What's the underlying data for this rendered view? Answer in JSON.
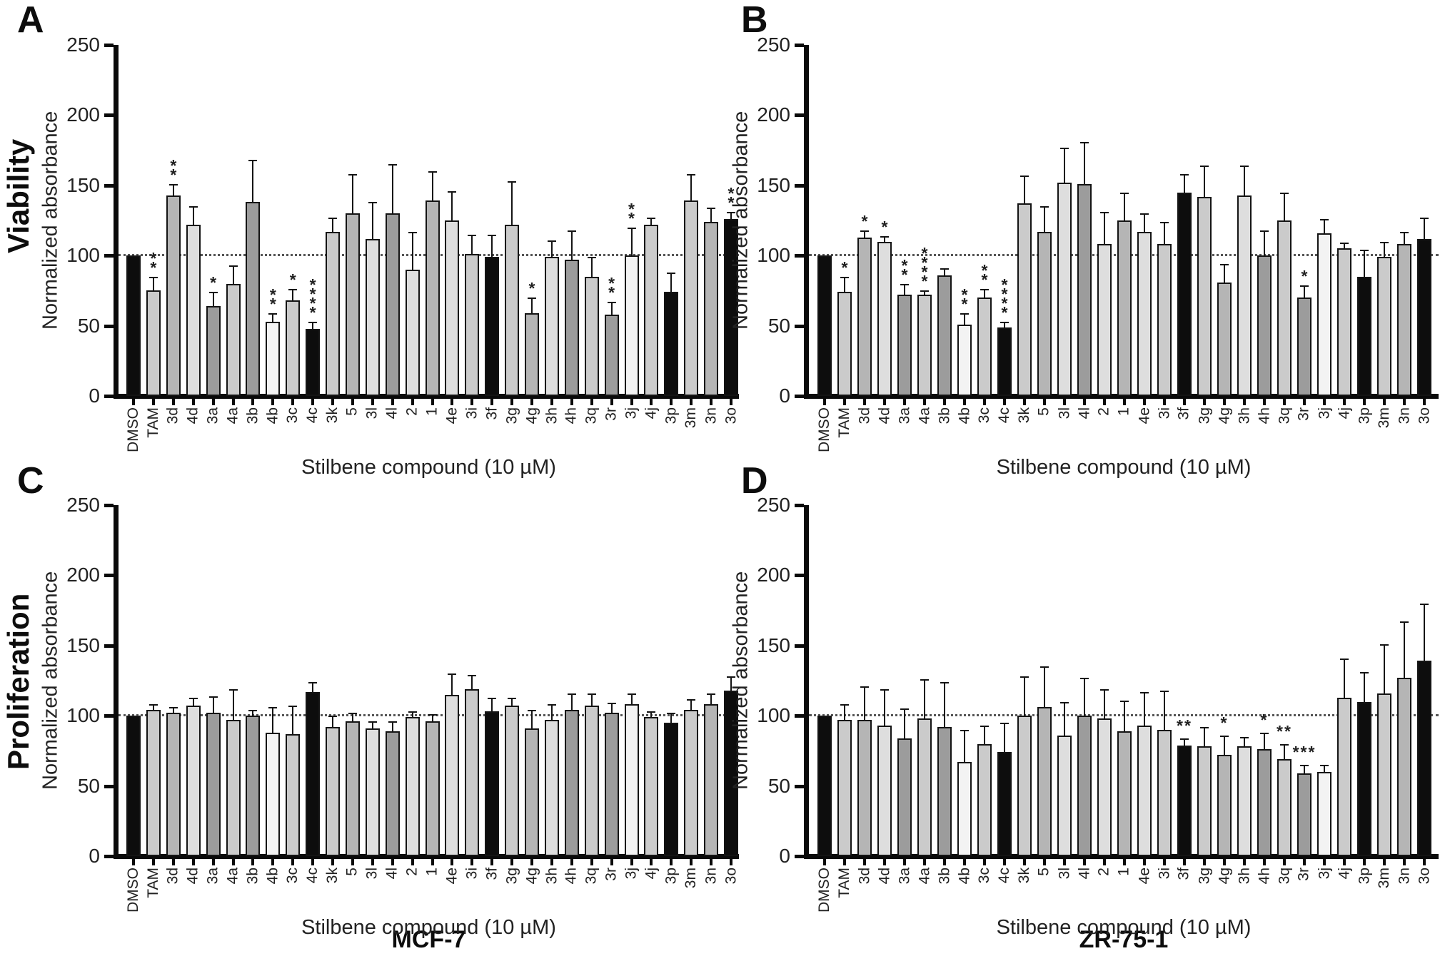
{
  "figure": {
    "panel_letters": {
      "A": "A",
      "B": "B",
      "C": "C",
      "D": "D"
    },
    "row_labels": [
      "Viability",
      "Proliferation"
    ],
    "column_footers": [
      "MCF-7",
      "ZR-75-1"
    ],
    "y_axis_label": "Normalized absorbance",
    "x_axis_label": "Stilbene compound (10 µM)",
    "y_ticks": [
      0,
      50,
      100,
      150,
      200,
      250
    ],
    "reference_line": 100,
    "bar_outline_color": "#141414",
    "shade_colors": {
      "black": "#0d0d0d",
      "dark": "#9c9c9c",
      "medium": "#b5b5b5",
      "light": "#cbcbcb",
      "lighter": "#dedede",
      "white": "#f3f3f3"
    },
    "shades": {
      "DMSO": "black",
      "TAM": "light",
      "3d": "medium",
      "4d": "lighter",
      "3a": "dark",
      "4a": "light",
      "3b": "dark",
      "4b": "white",
      "3c": "light",
      "4c": "black",
      "3k": "light",
      "5": "medium",
      "3l": "lighter",
      "4l": "dark",
      "2": "lighter",
      "1": "medium",
      "4e": "lighter",
      "3i": "light",
      "3f": "black",
      "3g": "light",
      "4g": "medium",
      "3h": "lighter",
      "4h": "dark",
      "3q": "light",
      "3r": "dark",
      "3j": "white",
      "4j": "light",
      "3p": "black",
      "3m": "light",
      "3n": "medium",
      "3o": "black"
    }
  },
  "chart_data": [
    {
      "type": "bar",
      "panel": "A",
      "row": "Viability",
      "cell_line": "MCF-7",
      "title": "",
      "ylabel": "Normalized absorbance",
      "xlabel": "Stilbene compound (10 µM)",
      "ylim": [
        0,
        250
      ],
      "reference_line": 100,
      "sig_orientation": "vertical",
      "categories": [
        "DMSO",
        "TAM",
        "3d",
        "4d",
        "3a",
        "4a",
        "3b",
        "4b",
        "3c",
        "4c",
        "3k",
        "5",
        "3l",
        "4l",
        "2",
        "1",
        "4e",
        "3i",
        "3f",
        "3g",
        "4g",
        "3h",
        "4h",
        "3q",
        "3r",
        "3j",
        "4j",
        "3p",
        "3m",
        "3n",
        "3o"
      ],
      "values": [
        100,
        75,
        143,
        122,
        64,
        80,
        138,
        53,
        68,
        48,
        117,
        130,
        112,
        130,
        90,
        139,
        125,
        101,
        99,
        122,
        59,
        99,
        97,
        85,
        58,
        100,
        122,
        74,
        139,
        124,
        126
      ],
      "errors": [
        0,
        10,
        8,
        13,
        10,
        13,
        30,
        6,
        8,
        5,
        10,
        28,
        26,
        35,
        27,
        21,
        21,
        14,
        16,
        31,
        11,
        12,
        21,
        14,
        9,
        20,
        5,
        14,
        19,
        10,
        5
      ],
      "sig": [
        "",
        "**",
        "**",
        "",
        "*",
        "",
        "",
        "**",
        "*",
        "****",
        "",
        "",
        "",
        "",
        "",
        "",
        "",
        "",
        "",
        "",
        "*",
        "",
        "",
        "",
        "**",
        "**",
        "",
        "",
        "",
        "",
        "**"
      ]
    },
    {
      "type": "bar",
      "panel": "B",
      "row": "Viability",
      "cell_line": "ZR-75-1",
      "title": "",
      "ylabel": "Normalized absorbance",
      "xlabel": "Stilbene compound (10 µM)",
      "ylim": [
        0,
        250
      ],
      "reference_line": 100,
      "sig_orientation": "vertical",
      "categories": [
        "DMSO",
        "TAM",
        "3d",
        "4d",
        "3a",
        "4a",
        "3b",
        "4b",
        "3c",
        "4c",
        "3k",
        "5",
        "3l",
        "4l",
        "2",
        "1",
        "4e",
        "3i",
        "3f",
        "3g",
        "4g",
        "3h",
        "4h",
        "3q",
        "3r",
        "3j",
        "4j",
        "3p",
        "3m",
        "3n",
        "3o"
      ],
      "values": [
        100,
        74,
        113,
        110,
        72,
        72,
        86,
        51,
        70,
        49,
        137,
        117,
        152,
        151,
        108,
        125,
        117,
        108,
        145,
        142,
        81,
        143,
        100,
        125,
        70,
        116,
        105,
        85,
        99,
        108,
        112
      ],
      "errors": [
        0,
        11,
        5,
        4,
        8,
        3,
        5,
        8,
        6,
        4,
        20,
        18,
        25,
        30,
        23,
        20,
        13,
        16,
        13,
        22,
        13,
        21,
        18,
        20,
        9,
        10,
        4,
        19,
        11,
        9,
        15
      ],
      "sig": [
        "",
        "*",
        "*",
        "*",
        "**",
        "****",
        "",
        "**",
        "**",
        "****",
        "",
        "",
        "",
        "",
        "",
        "",
        "",
        "",
        "",
        "",
        "",
        "",
        "",
        "",
        "*",
        "",
        "",
        "",
        "",
        "",
        ""
      ]
    },
    {
      "type": "bar",
      "panel": "C",
      "row": "Proliferation",
      "cell_line": "MCF-7",
      "title": "",
      "ylabel": "Normalized absorbance",
      "xlabel": "Stilbene compound (10 µM)",
      "ylim": [
        0,
        250
      ],
      "reference_line": 100,
      "sig_orientation": "horizontal",
      "categories": [
        "DMSO",
        "TAM",
        "3d",
        "4d",
        "3a",
        "4a",
        "3b",
        "4b",
        "3c",
        "4c",
        "3k",
        "5",
        "3l",
        "4l",
        "2",
        "1",
        "4e",
        "3i",
        "3f",
        "3g",
        "4g",
        "3h",
        "4h",
        "3q",
        "3r",
        "3j",
        "4j",
        "3p",
        "3m",
        "3n",
        "3o"
      ],
      "values": [
        100,
        104,
        102,
        107,
        102,
        97,
        100,
        88,
        87,
        117,
        92,
        96,
        91,
        89,
        99,
        96,
        115,
        119,
        103,
        107,
        91,
        97,
        104,
        107,
        102,
        108,
        99,
        95,
        104,
        108,
        118
      ],
      "errors": [
        0,
        4,
        4,
        6,
        12,
        22,
        4,
        18,
        20,
        7,
        8,
        6,
        5,
        7,
        4,
        5,
        15,
        10,
        10,
        6,
        13,
        11,
        12,
        9,
        7,
        8,
        4,
        7,
        8,
        8,
        10
      ],
      "sig": [
        "",
        "",
        "",
        "",
        "",
        "",
        "",
        "",
        "",
        "",
        "",
        "",
        "",
        "",
        "",
        "",
        "",
        "",
        "",
        "",
        "",
        "",
        "",
        "",
        "",
        "",
        "",
        "",
        "",
        "",
        ""
      ]
    },
    {
      "type": "bar",
      "panel": "D",
      "row": "Proliferation",
      "cell_line": "ZR-75-1",
      "title": "",
      "ylabel": "Normalized absorbance",
      "xlabel": "Stilbene compound (10 µM)",
      "ylim": [
        0,
        250
      ],
      "reference_line": 100,
      "sig_orientation": "horizontal",
      "categories": [
        "DMSO",
        "TAM",
        "3d",
        "4d",
        "3a",
        "4a",
        "3b",
        "4b",
        "3c",
        "4c",
        "3k",
        "5",
        "3l",
        "4l",
        "2",
        "1",
        "4e",
        "3i",
        "3f",
        "3g",
        "4g",
        "3h",
        "4h",
        "3q",
        "3r",
        "3j",
        "4j",
        "3p",
        "3m",
        "3n",
        "3o"
      ],
      "values": [
        100,
        97,
        97,
        93,
        84,
        98,
        92,
        67,
        80,
        74,
        100,
        106,
        86,
        100,
        98,
        89,
        93,
        90,
        79,
        78,
        72,
        78,
        76,
        69,
        59,
        60,
        113,
        110,
        116,
        127,
        139
      ],
      "errors": [
        0,
        11,
        24,
        26,
        21,
        28,
        32,
        23,
        13,
        21,
        28,
        29,
        24,
        27,
        21,
        22,
        24,
        28,
        5,
        14,
        14,
        7,
        12,
        11,
        6,
        5,
        28,
        21,
        35,
        40,
        41
      ],
      "sig": [
        "",
        "",
        "",
        "",
        "",
        "",
        "",
        "",
        "",
        "",
        "",
        "",
        "",
        "",
        "",
        "",
        "",
        "",
        "**",
        "",
        "*",
        "",
        "*",
        "**",
        "***",
        "",
        "",
        "",
        "",
        "",
        ""
      ]
    }
  ]
}
